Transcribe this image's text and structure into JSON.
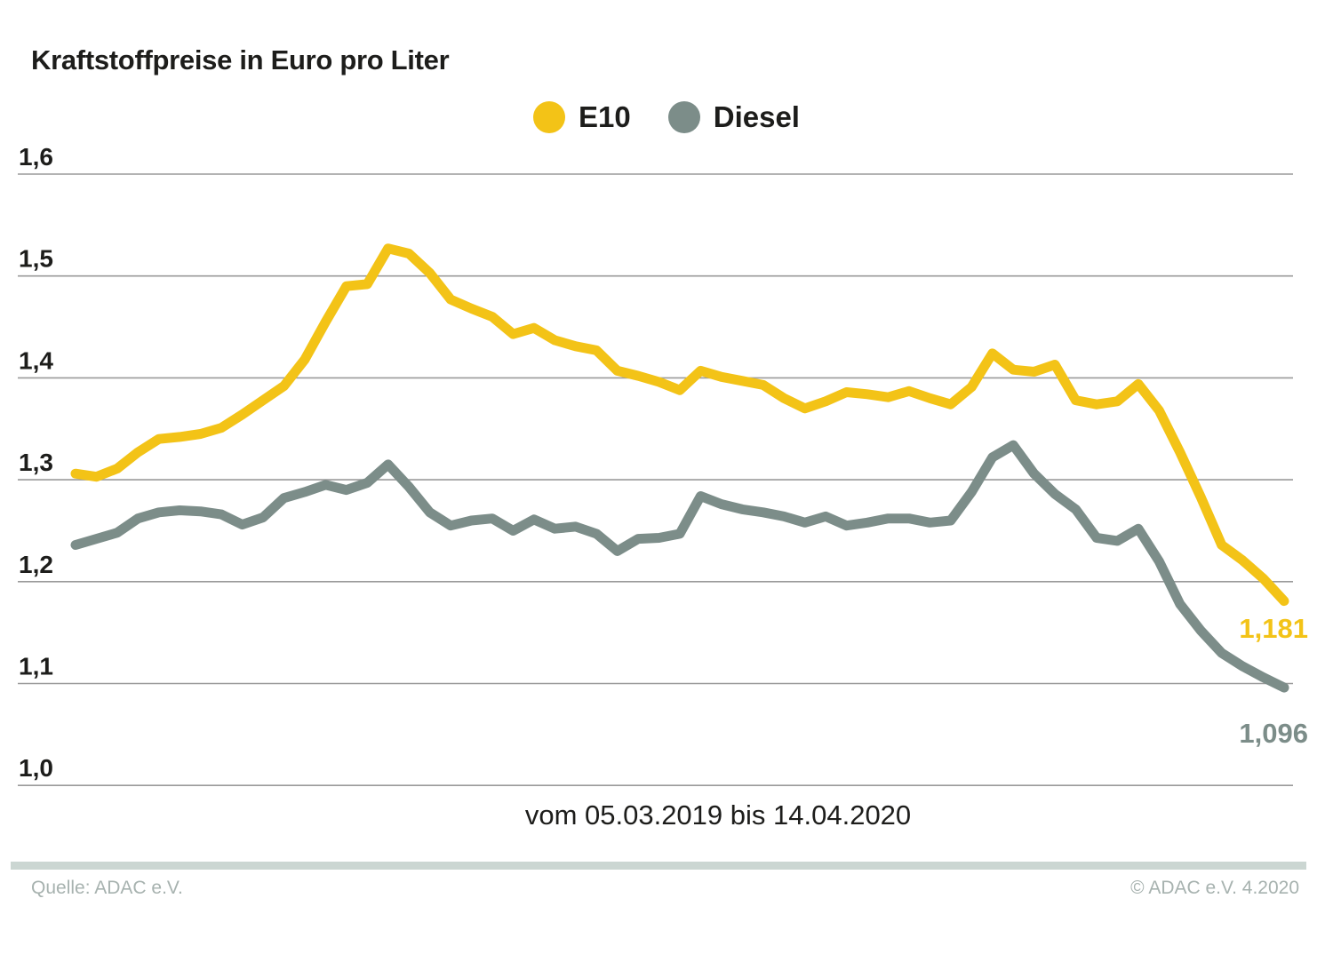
{
  "title": "Kraftstoffpreise in Euro pro Liter",
  "legend": {
    "items": [
      {
        "label": "E10",
        "color": "#f3c317"
      },
      {
        "label": "Diesel",
        "color": "#7c8d89"
      }
    ]
  },
  "x_axis": {
    "label": "vom 05.03.2019 bis 14.04.2020"
  },
  "y_axis": {
    "ticks": [
      {
        "label": "1,6",
        "value": 1.6
      },
      {
        "label": "1,5",
        "value": 1.5
      },
      {
        "label": "1,4",
        "value": 1.4
      },
      {
        "label": "1,3",
        "value": 1.3
      },
      {
        "label": "1,2",
        "value": 1.2
      },
      {
        "label": "1,1",
        "value": 1.1
      },
      {
        "label": "1,0",
        "value": 1.0
      }
    ]
  },
  "end_labels": {
    "e10": "1,181",
    "diesel": "1,096"
  },
  "footer": {
    "source": "Quelle: ADAC e.V.",
    "copyright": "© ADAC e.V. 4.2020"
  },
  "colors": {
    "e10": "#f3c317",
    "diesel": "#7c8d89",
    "grid": "#9a9a9a",
    "footer_bar": "#cbd6d2",
    "footer_text": "#a7b2af",
    "text": "#1d1d1b"
  },
  "chart_data": {
    "type": "line",
    "title": "Kraftstoffpreise in Euro pro Liter",
    "xlabel": "vom 05.03.2019 bis 14.04.2020",
    "ylabel": "Euro pro Liter",
    "x_start": "05.03.2019",
    "x_end": "14.04.2020",
    "x_unit": "weekly samples (59 points)",
    "ylim": [
      1.0,
      1.6
    ],
    "grid": true,
    "legend_position": "top-center",
    "series": [
      {
        "name": "E10",
        "last_value_label": "1,181",
        "values": [
          1.306,
          1.303,
          1.311,
          1.327,
          1.34,
          1.342,
          1.345,
          1.351,
          1.364,
          1.378,
          1.392,
          1.418,
          1.455,
          1.49,
          1.492,
          1.527,
          1.522,
          1.503,
          1.477,
          1.468,
          1.46,
          1.443,
          1.449,
          1.437,
          1.431,
          1.427,
          1.407,
          1.402,
          1.396,
          1.388,
          1.407,
          1.401,
          1.397,
          1.393,
          1.38,
          1.37,
          1.377,
          1.386,
          1.384,
          1.381,
          1.387,
          1.38,
          1.374,
          1.391,
          1.424,
          1.408,
          1.406,
          1.413,
          1.378,
          1.374,
          1.377,
          1.394,
          1.368,
          1.327,
          1.283,
          1.236,
          1.221,
          1.203,
          1.181
        ]
      },
      {
        "name": "Diesel",
        "last_value_label": "1,096",
        "values": [
          1.236,
          1.242,
          1.248,
          1.262,
          1.268,
          1.27,
          1.269,
          1.266,
          1.256,
          1.263,
          1.282,
          1.288,
          1.295,
          1.29,
          1.297,
          1.315,
          1.293,
          1.268,
          1.255,
          1.26,
          1.262,
          1.25,
          1.261,
          1.252,
          1.254,
          1.247,
          1.23,
          1.242,
          1.243,
          1.247,
          1.284,
          1.276,
          1.271,
          1.268,
          1.264,
          1.258,
          1.264,
          1.255,
          1.258,
          1.262,
          1.262,
          1.258,
          1.26,
          1.288,
          1.322,
          1.334,
          1.306,
          1.286,
          1.271,
          1.243,
          1.24,
          1.252,
          1.22,
          1.178,
          1.152,
          1.13,
          1.117,
          1.106,
          1.096
        ]
      }
    ]
  }
}
